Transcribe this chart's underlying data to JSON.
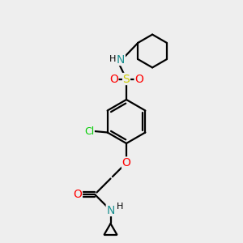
{
  "background_color": "#eeeeee",
  "bond_color": "#000000",
  "atom_colors": {
    "N": "#1a9090",
    "O": "#ff0000",
    "S": "#cccc00",
    "Cl": "#00cc00",
    "H": "#000000",
    "C": "#000000"
  },
  "bond_lw": 1.6,
  "font_size_atom": 9,
  "font_size_h": 8
}
